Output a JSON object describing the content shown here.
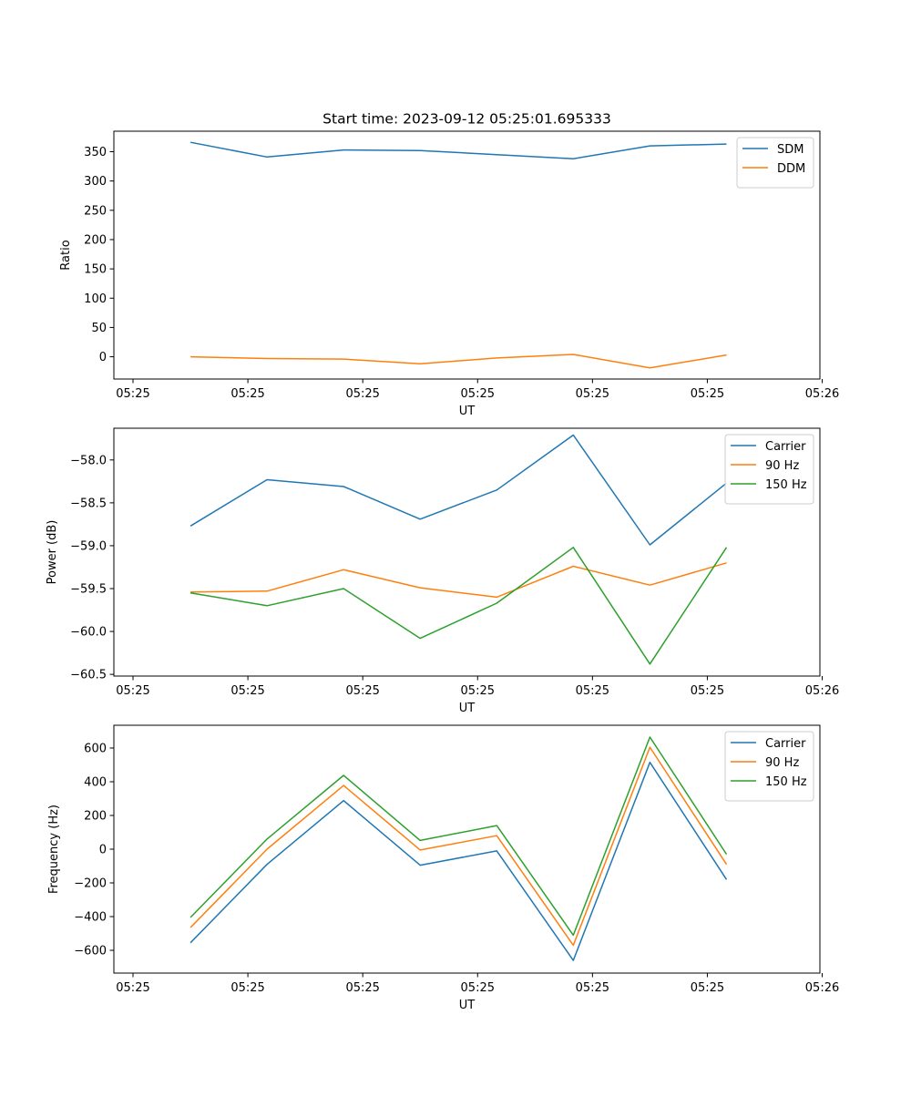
{
  "figure_title": "Start time: 2023-09-12 05:25:01.695333",
  "colors": {
    "c0": "#1f77b4",
    "c1": "#ff7f0e",
    "c2": "#2ca02c"
  },
  "chart_data": [
    {
      "type": "line",
      "title": "Start time: 2023-09-12 05:25:01.695333",
      "xlabel": "UT",
      "ylabel": "Ratio",
      "xlim": [
        0,
        9.22
      ],
      "ylim": [
        -38,
        385
      ],
      "x_ticks": [
        0.25,
        1.75,
        3.25,
        4.75,
        6.25,
        7.75,
        9.25
      ],
      "x_tick_labels": [
        "05:25",
        "05:25",
        "05:25",
        "05:25",
        "05:25",
        "05:25",
        "05:26"
      ],
      "y_ticks": [
        350,
        300,
        250,
        200,
        150,
        100,
        50,
        0
      ],
      "y_tick_labels": [
        "350",
        "300",
        "250",
        "200",
        "150",
        "100",
        "50",
        "0"
      ],
      "x": [
        1,
        2,
        3,
        4,
        5,
        6,
        7,
        8
      ],
      "legend_loc": "upper right",
      "series": [
        {
          "name": "SDM",
          "color": "#1f77b4",
          "values": [
            366,
            341,
            353,
            352,
            345,
            338,
            360,
            363
          ]
        },
        {
          "name": "DDM",
          "color": "#ff7f0e",
          "values": [
            0,
            -3,
            -4,
            -12,
            -2,
            4,
            -19,
            3
          ]
        }
      ]
    },
    {
      "type": "line",
      "title": "",
      "xlabel": "UT",
      "ylabel": "Power (dB)",
      "xlim": [
        0,
        9.22
      ],
      "ylim": [
        -60.52,
        -57.63
      ],
      "x_ticks": [
        0.25,
        1.75,
        3.25,
        4.75,
        6.25,
        7.75,
        9.25
      ],
      "x_tick_labels": [
        "05:25",
        "05:25",
        "05:25",
        "05:25",
        "05:25",
        "05:25",
        "05:26"
      ],
      "y_ticks": [
        -58.0,
        -58.5,
        -59.0,
        -59.5,
        -60.0,
        -60.5
      ],
      "y_tick_labels": [
        "−58.0",
        "−58.5",
        "−59.0",
        "−59.5",
        "−60.0",
        "−60.5"
      ],
      "x": [
        1,
        2,
        3,
        4,
        5,
        6,
        7,
        8
      ],
      "legend_loc": "upper right",
      "series": [
        {
          "name": "Carrier",
          "color": "#1f77b4",
          "values": [
            -58.77,
            -58.23,
            -58.31,
            -58.69,
            -58.35,
            -57.71,
            -58.99,
            -58.27
          ]
        },
        {
          "name": "90 Hz",
          "color": "#ff7f0e",
          "values": [
            -59.54,
            -59.53,
            -59.28,
            -59.49,
            -59.6,
            -59.24,
            -59.46,
            -59.2
          ]
        },
        {
          "name": "150 Hz",
          "color": "#2ca02c",
          "values": [
            -59.55,
            -59.7,
            -59.5,
            -60.08,
            -59.67,
            -59.02,
            -60.38,
            -59.02
          ]
        }
      ]
    },
    {
      "type": "line",
      "title": "",
      "xlabel": "UT",
      "ylabel": "Frequency (Hz)",
      "xlim": [
        0,
        9.22
      ],
      "ylim": [
        -735,
        735
      ],
      "x_ticks": [
        0.25,
        1.75,
        3.25,
        4.75,
        6.25,
        7.75,
        9.25
      ],
      "x_tick_labels": [
        "05:25",
        "05:25",
        "05:25",
        "05:25",
        "05:25",
        "05:25",
        "05:26"
      ],
      "y_ticks": [
        600,
        400,
        200,
        0,
        -200,
        -400,
        -600
      ],
      "y_tick_labels": [
        "600",
        "400",
        "200",
        "0",
        "−200",
        "−400",
        "−600"
      ],
      "x": [
        1,
        2,
        3,
        4,
        5,
        6,
        7,
        8
      ],
      "legend_loc": "upper right",
      "series": [
        {
          "name": "Carrier",
          "color": "#1f77b4",
          "values": [
            -555,
            -90,
            288,
            -95,
            -10,
            -660,
            515,
            -180
          ]
        },
        {
          "name": "90 Hz",
          "color": "#ff7f0e",
          "values": [
            -465,
            0,
            378,
            -5,
            80,
            -570,
            605,
            -90
          ]
        },
        {
          "name": "150 Hz",
          "color": "#2ca02c",
          "values": [
            -405,
            60,
            438,
            52,
            140,
            -510,
            665,
            -30
          ]
        }
      ]
    }
  ]
}
